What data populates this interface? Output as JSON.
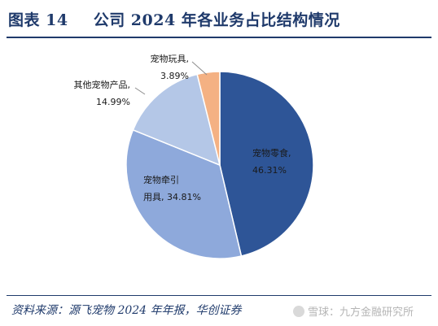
{
  "header": {
    "figure_no": "图表 14",
    "title": "公司 2024 年各业务占比结构情况"
  },
  "chart_data": {
    "type": "pie",
    "slices": [
      {
        "name": "宠物零食",
        "value": 46.31,
        "color": "#2e5597",
        "label_lines": [
          "宠物零食,",
          "46.31%"
        ]
      },
      {
        "name": "宠物牵引用具",
        "value": 34.81,
        "color": "#8ea9db",
        "label_lines": [
          "宠物牵引",
          "用具, 34.81%"
        ]
      },
      {
        "name": "其他宠物产品",
        "value": 14.99,
        "color": "#b4c7e7",
        "label_lines": [
          "其他宠物产品,",
          "14.99%"
        ]
      },
      {
        "name": "宠物玩具",
        "value": 3.89,
        "color": "#f4b183",
        "label_lines": [
          "宠物玩具,",
          "3.89%"
        ]
      }
    ]
  },
  "footer": {
    "source": "资料来源：源飞宠物 2024 年年报，华创证券",
    "watermark": "雪球：九方金融研究所"
  }
}
